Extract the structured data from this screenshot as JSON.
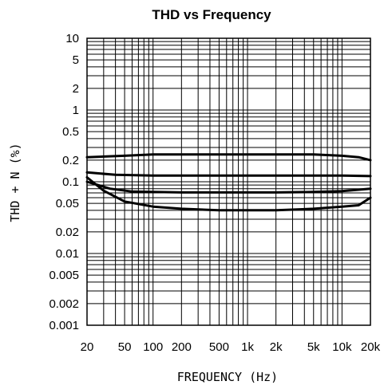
{
  "chart_data": {
    "type": "line",
    "title": "THD vs Frequency",
    "xlabel": "FREQUENCY (Hz)",
    "ylabel": "THD + N (%)",
    "x_scale": "log",
    "y_scale": "log",
    "xlim": [
      20,
      20000
    ],
    "ylim": [
      0.001,
      10
    ],
    "grid": true,
    "x_ticks": [
      {
        "value": 20,
        "label": "20"
      },
      {
        "value": 50,
        "label": "50"
      },
      {
        "value": 100,
        "label": "100"
      },
      {
        "value": 200,
        "label": "200"
      },
      {
        "value": 500,
        "label": "500"
      },
      {
        "value": 1000,
        "label": "1k"
      },
      {
        "value": 2000,
        "label": "2k"
      },
      {
        "value": 5000,
        "label": "5k"
      },
      {
        "value": 10000,
        "label": "10k"
      },
      {
        "value": 20000,
        "label": "20k"
      }
    ],
    "y_ticks": [
      {
        "value": 10,
        "label": "10"
      },
      {
        "value": 5,
        "label": "5"
      },
      {
        "value": 2,
        "label": "2"
      },
      {
        "value": 1,
        "label": "1"
      },
      {
        "value": 0.5,
        "label": "0.5"
      },
      {
        "value": 0.2,
        "label": "0.2"
      },
      {
        "value": 0.1,
        "label": "0.1"
      },
      {
        "value": 0.05,
        "label": "0.05"
      },
      {
        "value": 0.02,
        "label": "0.02"
      },
      {
        "value": 0.01,
        "label": "0.01"
      },
      {
        "value": 0.005,
        "label": "0.005"
      },
      {
        "value": 0.002,
        "label": "0.002"
      },
      {
        "value": 0.001,
        "label": "0.001"
      }
    ],
    "series": [
      {
        "x": [
          20,
          50,
          100,
          200,
          500,
          1000,
          2000,
          5000,
          10000,
          15000,
          20000
        ],
        "y": [
          0.22,
          0.23,
          0.24,
          0.24,
          0.24,
          0.24,
          0.24,
          0.24,
          0.23,
          0.22,
          0.2
        ]
      },
      {
        "x": [
          20,
          40,
          100,
          200,
          500,
          1000,
          2000,
          5000,
          10000,
          20000
        ],
        "y": [
          0.135,
          0.125,
          0.122,
          0.122,
          0.122,
          0.122,
          0.122,
          0.122,
          0.122,
          0.12
        ]
      },
      {
        "x": [
          20,
          35,
          60,
          100,
          200,
          500,
          1000,
          2000,
          5000,
          10000,
          20000
        ],
        "y": [
          0.1,
          0.08,
          0.073,
          0.072,
          0.071,
          0.071,
          0.071,
          0.071,
          0.072,
          0.074,
          0.08
        ]
      },
      {
        "x": [
          20,
          30,
          50,
          100,
          200,
          500,
          1000,
          2000,
          5000,
          10000,
          15000,
          20000
        ],
        "y": [
          0.115,
          0.075,
          0.053,
          0.045,
          0.042,
          0.04,
          0.04,
          0.04,
          0.042,
          0.045,
          0.047,
          0.06
        ]
      }
    ]
  }
}
